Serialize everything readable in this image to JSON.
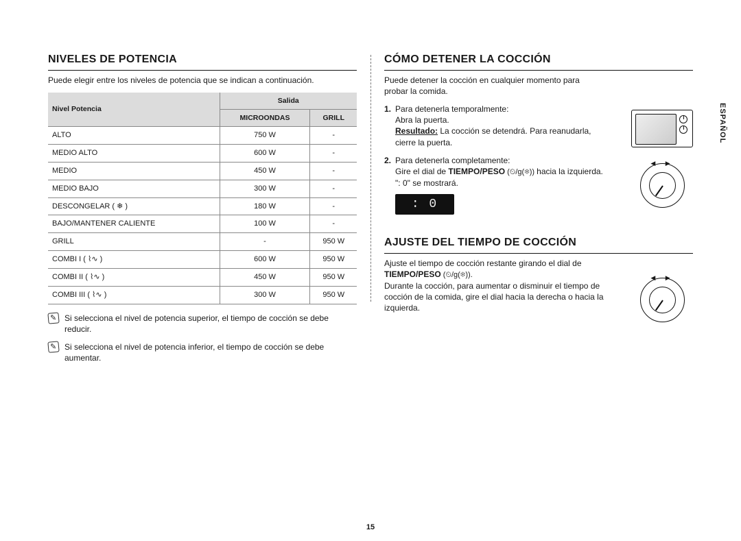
{
  "page_number": "15",
  "language_tab": "ESPAÑOL",
  "colors": {
    "heading_rule": "#111111",
    "table_header_bg": "#dcdcdc",
    "border": "#888888",
    "text": "#1a1a1a"
  },
  "left": {
    "title": "NIVELES DE POTENCIA",
    "intro": "Puede elegir entre los niveles de potencia que se indican a continuación.",
    "table": {
      "col_level": "Nivel Potencia",
      "col_output": "Salida",
      "sub_micro": "MICROONDAS",
      "sub_grill": "GRILL",
      "rows": [
        {
          "level": "ALTO",
          "micro": "750 W",
          "grill": "-"
        },
        {
          "level": "MEDIO ALTO",
          "micro": "600 W",
          "grill": "-"
        },
        {
          "level": "MEDIO",
          "micro": "450 W",
          "grill": "-"
        },
        {
          "level": "MEDIO BAJO",
          "micro": "300 W",
          "grill": "-"
        },
        {
          "level": "DESCONGELAR ( ❄ )",
          "micro": "180 W",
          "grill": "-"
        },
        {
          "level": "BAJO/MANTENER CALIENTE",
          "micro": "100 W",
          "grill": "-"
        },
        {
          "level": "GRILL",
          "micro": "-",
          "grill": "950 W"
        },
        {
          "level": "COMBI I ( ⌇∿ )",
          "micro": "600 W",
          "grill": "950 W"
        },
        {
          "level": "COMBI II ( ⌇∿ )",
          "micro": "450 W",
          "grill": "950 W"
        },
        {
          "level": "COMBI III ( ⌇∿ )",
          "micro": "300 W",
          "grill": "950 W"
        }
      ]
    },
    "notes": [
      "Si selecciona el nivel de potencia superior, el tiempo de cocción se debe reducir.",
      "Si selecciona el nivel de potencia inferior, el tiempo de cocción se debe aumentar."
    ]
  },
  "right": {
    "stop": {
      "title": "CÓMO DETENER LA COCCIÓN",
      "intro": "Puede detener la cocción en cualquier momento para probar la comida.",
      "step1_num": "1.",
      "step1_a": "Para detenerla temporalmente:",
      "step1_b": "Abra la puerta.",
      "step1_result_label": "Resultado:",
      "step1_result_text": "La cocción se detendrá. Para reanudarla, cierre la puerta.",
      "step2_num": "2.",
      "step2_a": "Para detenerla completamente:",
      "step2_b_pre": "Gire el dial de ",
      "step2_b_bold": "TIEMPO/PESO",
      "step2_b_sym": " (⏲/g(❄)) ",
      "step2_b_post": "hacia la izquierda.",
      "step2_c": "\": 0\" se mostrará.",
      "display_value": ": 0"
    },
    "adjust": {
      "title": "AJUSTE DEL TIEMPO DE COCCIÓN",
      "line1": "Ajuste el tiempo de cocción restante girando el dial de",
      "line2_bold": "TIEMPO/PESO",
      "line2_sym": " (⏲/g(❄)).",
      "line3": "Durante la cocción, para aumentar o disminuir el tiempo de cocción de la comida, gire el dial hacia la derecha o hacia la izquierda."
    }
  }
}
